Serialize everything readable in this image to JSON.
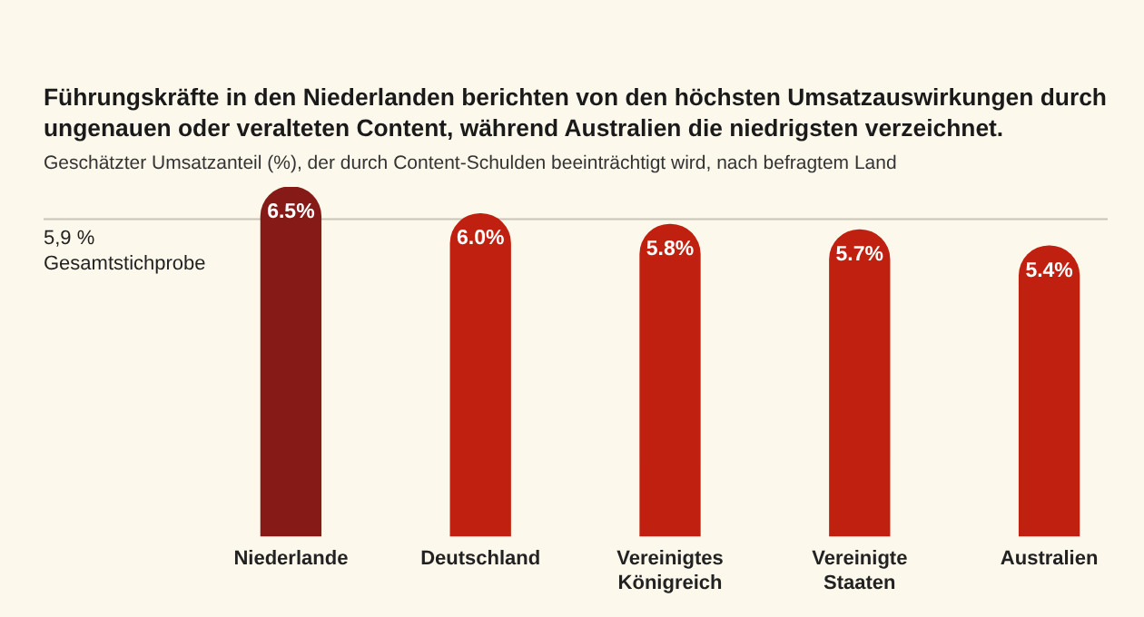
{
  "chart_data": {
    "type": "bar",
    "title": "Führungskräfte in den Niederlanden berichten von den höchsten Umsatzauswirkungen durch ungenauen oder veralteten Content, während Australien die niedrigsten verzeichnet.",
    "subtitle": "Geschätzter Umsatzanteil (%), der durch Content-Schulden beeinträchtigt wird, nach befragtem Land",
    "categories": [
      "Niederlande",
      "Deutschland",
      "Vereinigtes Königreich",
      "Vereinigte Staaten",
      "Australien"
    ],
    "values": [
      6.5,
      6.0,
      5.8,
      5.7,
      5.4
    ],
    "value_labels": [
      "6.5%",
      "6.0%",
      "5.8%",
      "5.7%",
      "5.4%"
    ],
    "colors": [
      "#861a17",
      "#c0200f",
      "#c0200f",
      "#c0200f",
      "#c0200f"
    ],
    "ref_lines": [
      {
        "axis": "y",
        "value": 5.9,
        "label": "5,9 %\nGesamtstichprobe",
        "color": "#c8c4b8"
      }
    ],
    "tick_labels": "x",
    "grid": false,
    "legend": false
  }
}
